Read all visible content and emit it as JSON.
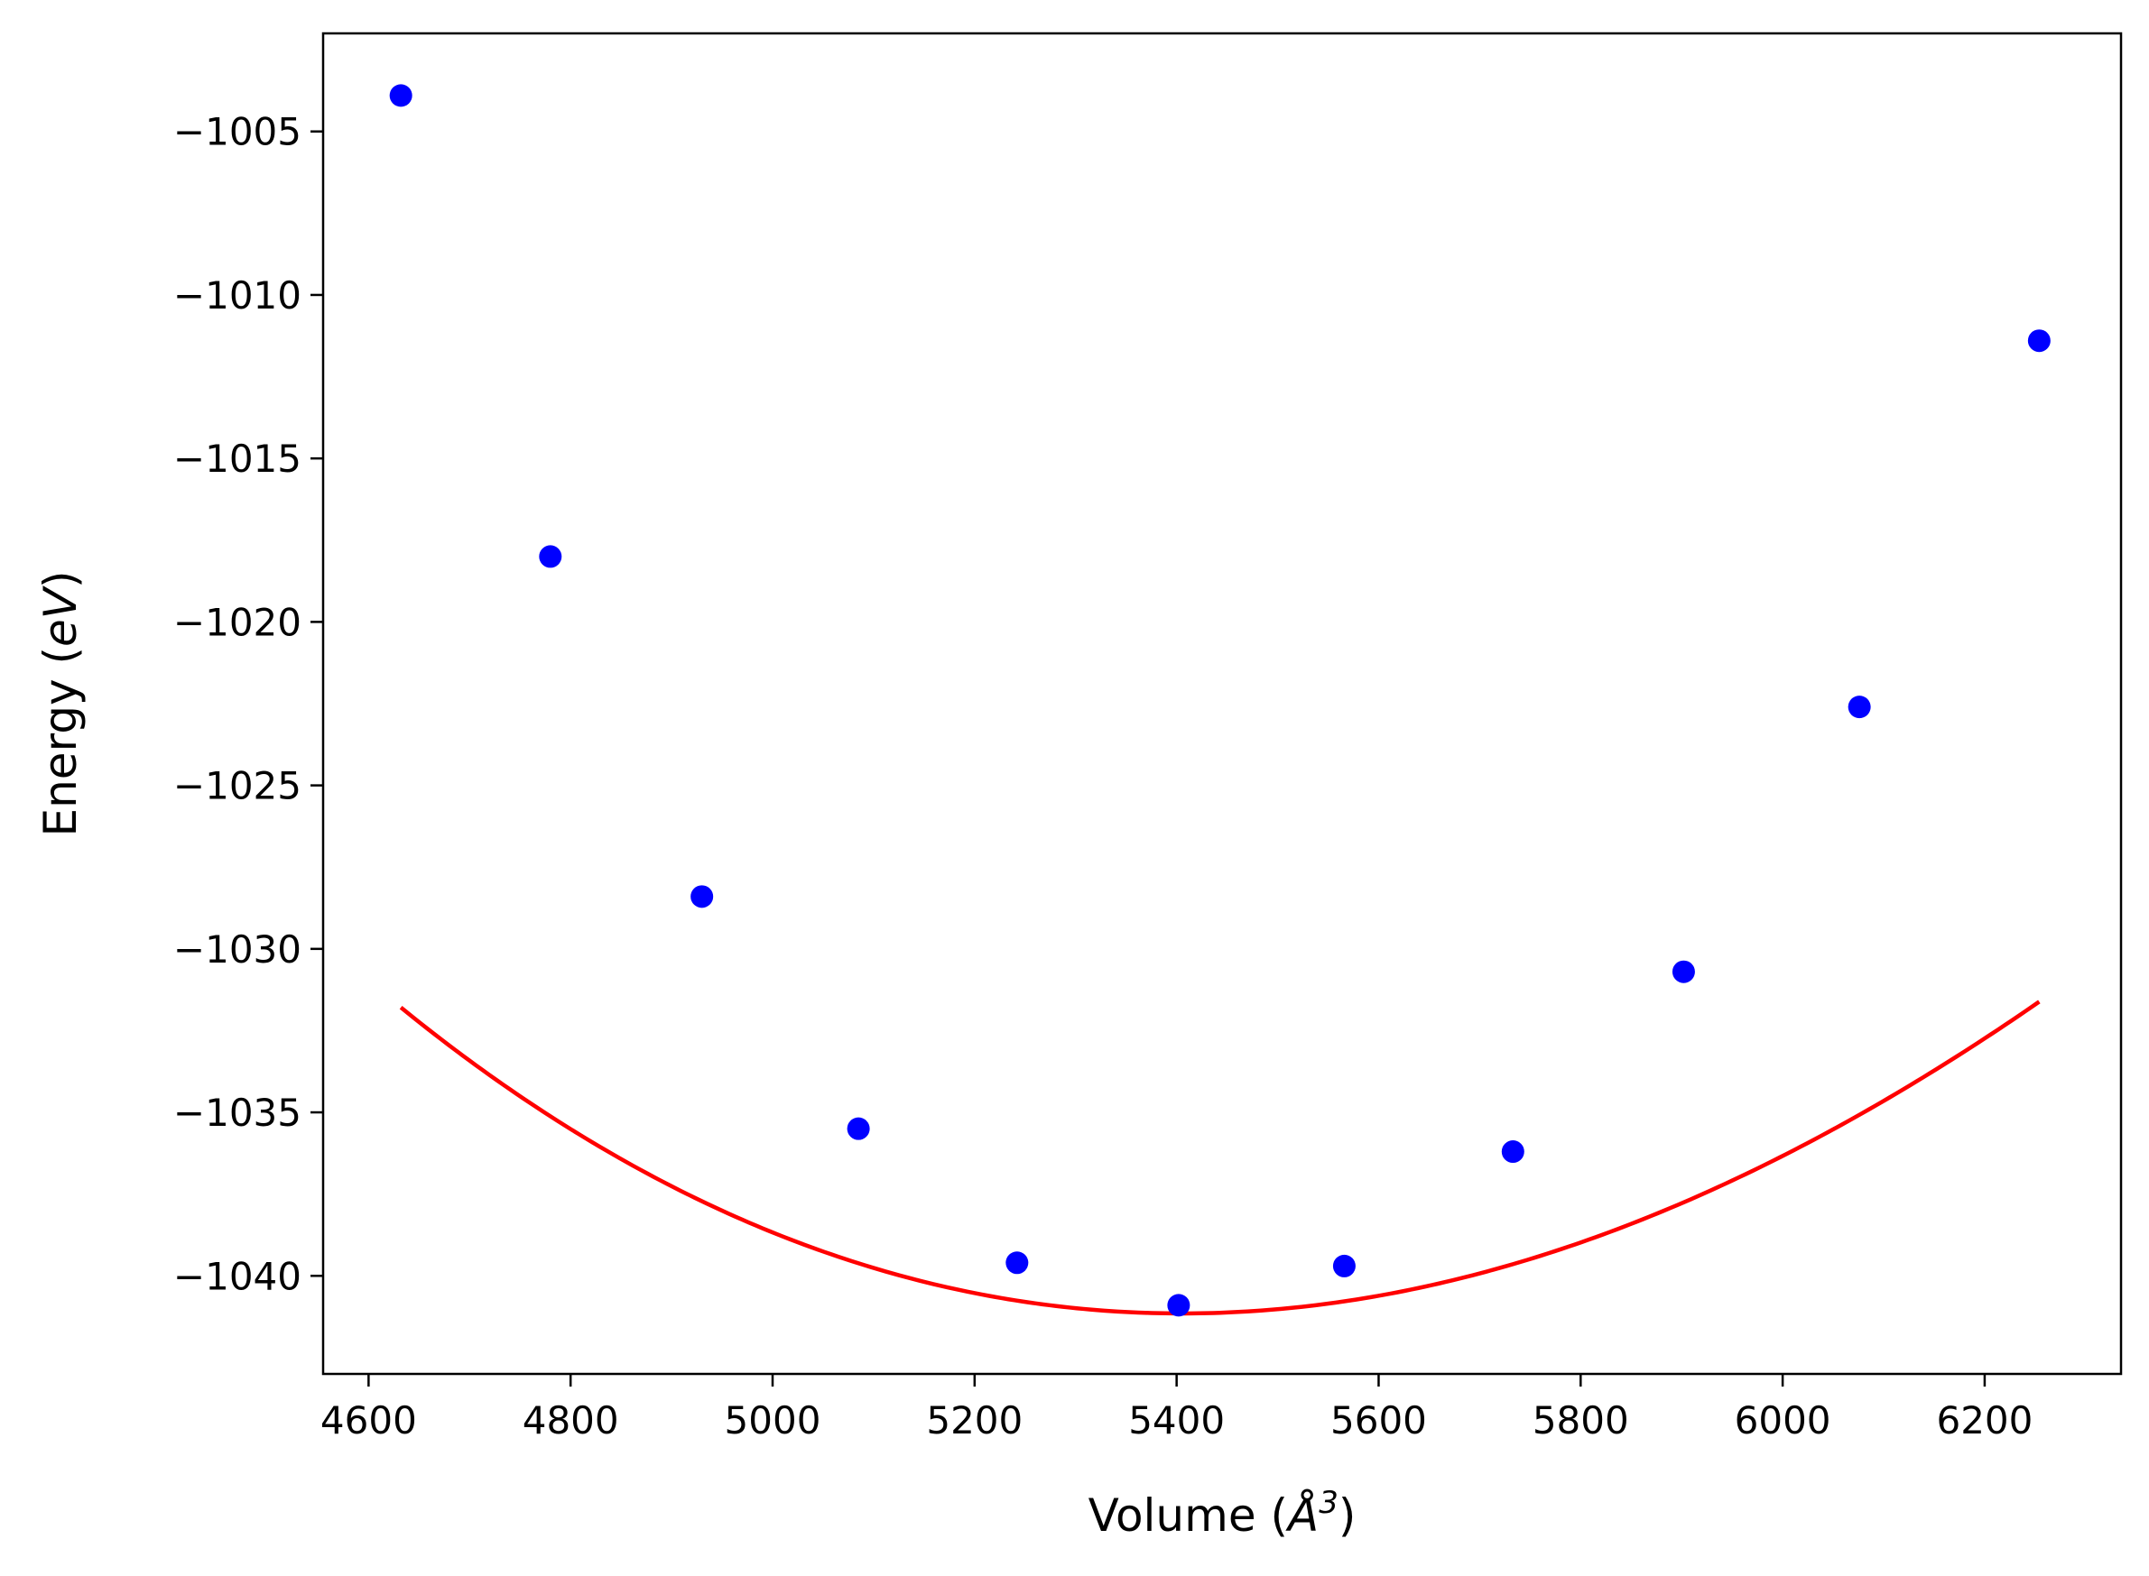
{
  "chart_data": {
    "type": "scatter",
    "title": "",
    "xlabel": "Volume (Å³)",
    "xlabel_parts": {
      "text": "Volume (",
      "symbol": "Å",
      "sup": "3",
      "close": ")"
    },
    "ylabel": "Energy (eV)",
    "ylabel_parts": {
      "text": "Energy (",
      "unit": "eV",
      "close": ")"
    },
    "xlim": [
      4555,
      6335
    ],
    "ylim": [
      -1043.0,
      -1002.0
    ],
    "xticks": [
      4600,
      4800,
      5000,
      5200,
      5400,
      5600,
      5800,
      6000,
      6200
    ],
    "yticks": [
      -1005,
      -1010,
      -1015,
      -1020,
      -1025,
      -1030,
      -1035,
      -1040
    ],
    "grid": false,
    "legend": "none",
    "series": [
      {
        "kind": "points",
        "color": "#0000ff",
        "x": [
          4632,
          4780,
          4930,
          5085,
          5242,
          5402,
          5566,
          5733,
          5902,
          6076,
          6254
        ],
        "y": [
          -1003.9,
          -1018.0,
          -1028.4,
          -1035.5,
          -1039.6,
          -1040.9,
          -1039.7,
          -1036.2,
          -1030.7,
          -1022.6,
          -1011.4
        ]
      },
      {
        "kind": "fit-curve",
        "color": "#ff0000",
        "x_range": [
          4632,
          6254
        ],
        "fit": {
          "min_x": 5405,
          "min_y": -1041.15,
          "a": 1.45e-05,
          "b": -1.5e-09
        }
      }
    ]
  }
}
